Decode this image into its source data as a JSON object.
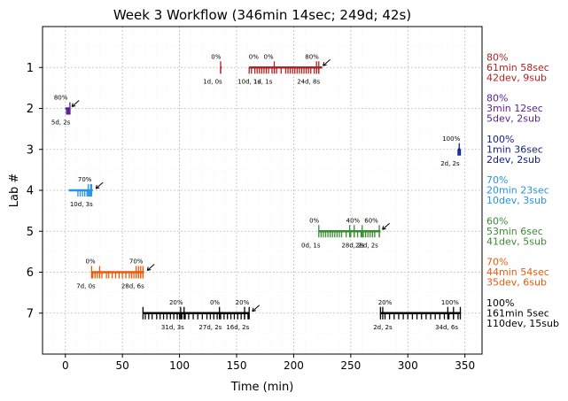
{
  "chart_data": {
    "type": "timeline",
    "title": "Week 3 Workflow (346min 14sec; 249d; 42s)",
    "xlabel": "Time (min)",
    "ylabel": "Lab #",
    "xlim": [
      -20,
      365
    ],
    "ylim": [
      0,
      8
    ],
    "xticks": [
      0,
      50,
      100,
      150,
      200,
      250,
      300,
      350
    ],
    "yticks": [
      1,
      2,
      3,
      4,
      5,
      6,
      7
    ],
    "grid": true,
    "annotation_size_note": "",
    "labs": [
      {
        "lab": 1,
        "color": "#b22222",
        "summary": [
          "80%",
          "61min 58sec",
          "42dev, 9sub"
        ],
        "segments": [
          [
            136,
            137
          ],
          [
            161,
            225
          ]
        ],
        "ticks": [
          136,
          161,
          163,
          166,
          168,
          170,
          172,
          174,
          176,
          178,
          181,
          183,
          185,
          189,
          193,
          195,
          197,
          199,
          201,
          203,
          205,
          207,
          209,
          211,
          213,
          215,
          218,
          220,
          222
        ],
        "sub_ticks": [
          136,
          183,
          220,
          222
        ],
        "pct_labels": [
          {
            "t": 132,
            "text": "0%"
          },
          {
            "t": 165,
            "text": "0%"
          },
          {
            "t": 178,
            "text": "0%"
          },
          {
            "t": 216,
            "text": "80%"
          }
        ],
        "gap_labels": [
          {
            "t": 129,
            "text": "1d, 0s"
          },
          {
            "t": 161,
            "text": "10d, 1s"
          },
          {
            "t": 173,
            "text": "1d, 1s"
          },
          {
            "t": 213,
            "text": "24d, 8s"
          }
        ],
        "arrow_t": 225
      },
      {
        "lab": 2,
        "color": "#5b1f8a",
        "summary": [
          "80%",
          "3min 12sec",
          "5dev, 2sub"
        ],
        "segments": [
          [
            0,
            4
          ]
        ],
        "ticks": [
          1,
          2,
          3,
          4
        ],
        "sub_ticks": [
          4
        ],
        "pct_labels": [
          {
            "t": -4,
            "text": "80%"
          }
        ],
        "gap_labels": [
          {
            "t": -4,
            "text": "5d, 2s"
          }
        ],
        "arrow_t": 5
      },
      {
        "lab": 3,
        "color": "#10208a",
        "summary": [
          "100%",
          "1min 36sec",
          "2dev, 2sub"
        ],
        "segments": [
          [
            344,
            346
          ]
        ],
        "ticks": [
          344,
          346
        ],
        "sub_ticks": [
          345
        ],
        "pct_labels": [
          {
            "t": 338,
            "text": "100%"
          }
        ],
        "gap_labels": [
          {
            "t": 337,
            "text": "2d, 2s"
          }
        ],
        "arrow_t": null
      },
      {
        "lab": 4,
        "color": "#2693e6",
        "summary": [
          "70%",
          "20min 23sec",
          "10dev, 3sub"
        ],
        "segments": [
          [
            3,
            24
          ]
        ],
        "ticks": [
          11,
          13,
          15,
          17,
          19,
          21,
          22,
          23
        ],
        "sub_ticks": [
          20,
          22,
          23
        ],
        "pct_labels": [
          {
            "t": 17,
            "text": "70%"
          }
        ],
        "gap_labels": [
          {
            "t": 14,
            "text": "10d, 3s"
          }
        ],
        "arrow_t": 26
      },
      {
        "lab": 5,
        "color": "#3a8c33",
        "summary": [
          "60%",
          "53min 6sec",
          "41dev, 5sub"
        ],
        "segments": [
          [
            222,
            276
          ]
        ],
        "ticks": [
          224,
          226,
          228,
          230,
          232,
          234,
          236,
          238,
          240,
          242,
          246,
          250,
          253,
          256,
          259,
          261,
          263,
          265,
          267,
          269,
          271,
          275
        ],
        "sub_ticks": [
          222,
          249,
          253,
          260,
          275
        ],
        "pct_labels": [
          {
            "t": 218,
            "text": "0%"
          },
          {
            "t": 252,
            "text": "40%"
          },
          {
            "t": 268,
            "text": "60%"
          }
        ],
        "gap_labels": [
          {
            "t": 215,
            "text": "0d, 1s"
          },
          {
            "t": 252,
            "text": "28d, 2s"
          },
          {
            "t": 264,
            "text": "28d, 2s"
          }
        ],
        "arrow_t": 277
      },
      {
        "lab": 6,
        "color": "#e85a0c",
        "summary": [
          "70%",
          "44min 54sec",
          "35dev, 6sub"
        ],
        "segments": [
          [
            23,
            69
          ]
        ],
        "ticks": [
          24,
          26,
          28,
          30,
          32,
          36,
          38,
          41,
          44,
          47,
          50,
          53,
          56,
          58,
          60,
          62,
          64,
          66,
          68
        ],
        "sub_ticks": [
          23,
          30,
          62,
          64,
          66,
          68
        ],
        "pct_labels": [
          {
            "t": 22,
            "text": "0%"
          },
          {
            "t": 62,
            "text": "70%"
          }
        ],
        "gap_labels": [
          {
            "t": 18,
            "text": "7d, 0s"
          },
          {
            "t": 59,
            "text": "28d, 6s"
          }
        ],
        "arrow_t": 71
      },
      {
        "lab": 7,
        "color": "#000000",
        "summary": [
          "100%",
          "161min 5sec",
          "110dev, 15sub"
        ],
        "segments": [
          [
            68,
            161
          ],
          [
            276,
            346
          ]
        ],
        "ticks": [
          70,
          73,
          76,
          80,
          83,
          86,
          89,
          92,
          95,
          98,
          100,
          102,
          105,
          108,
          112,
          116,
          120,
          124,
          127,
          130,
          133,
          136,
          139,
          142,
          145,
          148,
          151,
          154,
          157,
          160,
          280,
          284,
          288,
          292,
          296,
          300,
          304,
          308,
          312,
          316,
          320,
          324,
          328,
          332,
          336,
          340,
          344
        ],
        "sub_ticks": [
          68,
          101,
          104,
          135,
          157,
          161,
          276,
          278,
          335,
          340,
          346
        ],
        "pct_labels": [
          {
            "t": 97,
            "text": "20%"
          },
          {
            "t": 131,
            "text": "0%"
          },
          {
            "t": 155,
            "text": "20%"
          },
          {
            "t": 280,
            "text": "20%"
          },
          {
            "t": 337,
            "text": "100%"
          }
        ],
        "gap_labels": [
          {
            "t": 94,
            "text": "31d, 3s"
          },
          {
            "t": 127,
            "text": "27d, 2s"
          },
          {
            "t": 151,
            "text": "16d, 2s"
          },
          {
            "t": 278,
            "text": "2d, 2s"
          },
          {
            "t": 334,
            "text": "34d, 6s"
          }
        ],
        "arrow_t": 163
      }
    ]
  }
}
